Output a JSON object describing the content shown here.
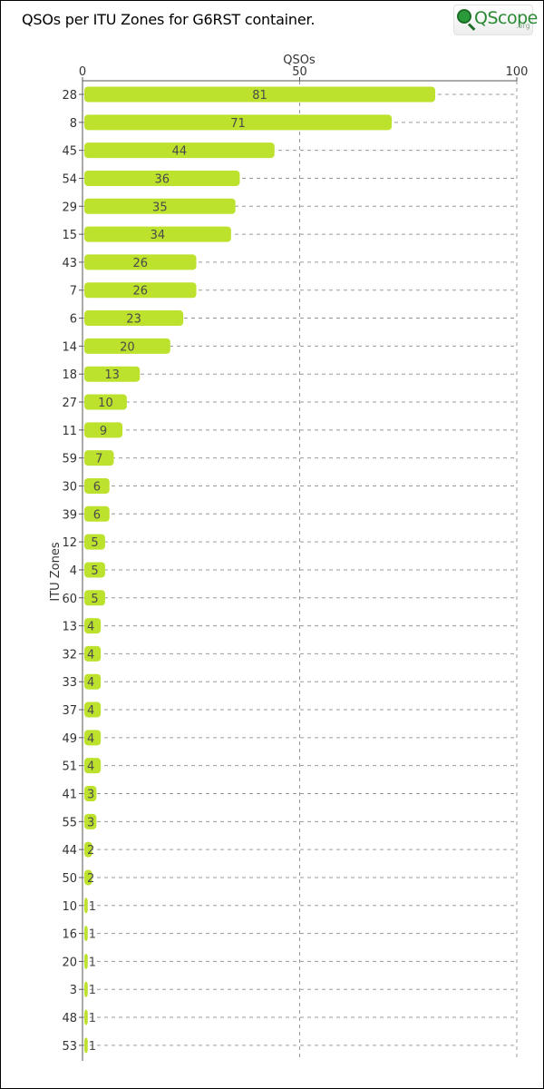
{
  "title": "QSOs per ITU Zones for G6RST container.",
  "logo": {
    "text": "QScope",
    "suffix": ".org"
  },
  "chart_data": {
    "type": "bar",
    "orientation": "horizontal",
    "title": "QSOs per ITU Zones for G6RST container.",
    "xlabel": "QSOs",
    "ylabel": "ITU Zones",
    "xlim": [
      0,
      100
    ],
    "x_ticks": [
      0,
      50,
      100
    ],
    "x_axis_position": "top",
    "grid": true,
    "bar_color": "#bde22e",
    "categories": [
      "28",
      "8",
      "45",
      "54",
      "29",
      "15",
      "43",
      "7",
      "6",
      "14",
      "18",
      "27",
      "11",
      "59",
      "30",
      "39",
      "12",
      "4",
      "60",
      "13",
      "32",
      "33",
      "37",
      "49",
      "51",
      "41",
      "55",
      "44",
      "50",
      "10",
      "16",
      "20",
      "3",
      "48",
      "53"
    ],
    "values": [
      81,
      71,
      44,
      36,
      35,
      34,
      26,
      26,
      23,
      20,
      13,
      10,
      9,
      7,
      6,
      6,
      5,
      5,
      5,
      4,
      4,
      4,
      4,
      4,
      4,
      3,
      3,
      2,
      2,
      1,
      1,
      1,
      1,
      1,
      1
    ]
  }
}
